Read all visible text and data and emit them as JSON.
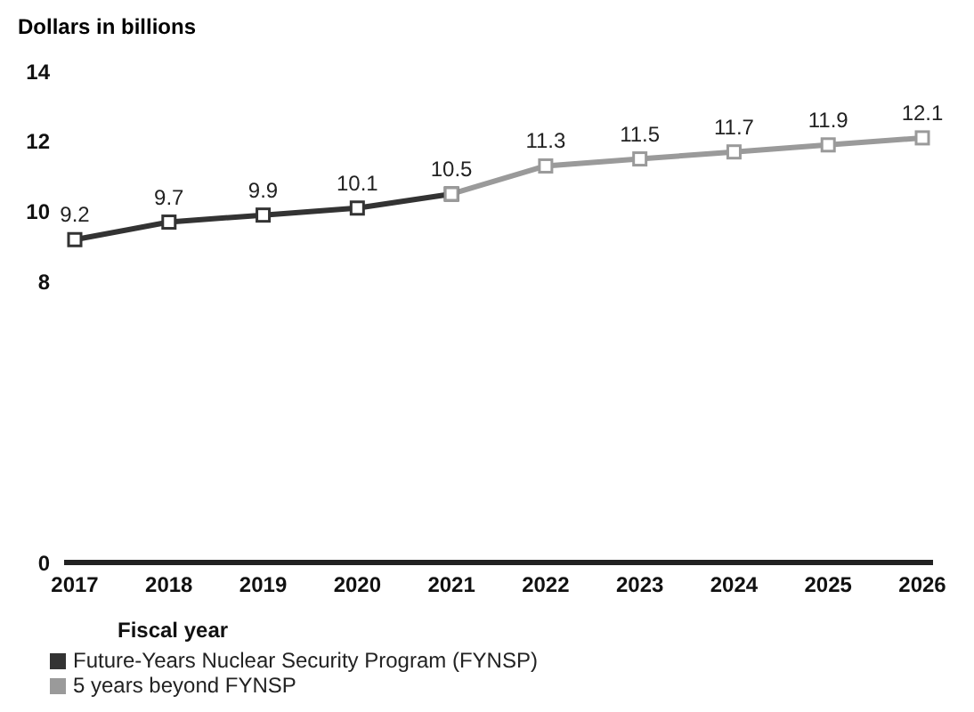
{
  "chart_data": {
    "type": "line",
    "ylabel": "Dollars in billions",
    "xlabel": "Fiscal year",
    "categories": [
      "2017",
      "2018",
      "2019",
      "2020",
      "2021",
      "2022",
      "2023",
      "2024",
      "2025",
      "2026"
    ],
    "series": [
      {
        "name": "Future-Years Nuclear Security Program (FYNSP)",
        "color": "#333333",
        "values": [
          9.2,
          9.7,
          9.9,
          10.1,
          10.5,
          null,
          null,
          null,
          null,
          null
        ],
        "value_labels": [
          "9.2",
          "9.7",
          "9.9",
          "10.1",
          "10.5",
          null,
          null,
          null,
          null,
          null
        ]
      },
      {
        "name": "5 years beyond FYNSP",
        "color": "#9a9a9a",
        "values": [
          null,
          null,
          null,
          null,
          10.5,
          11.3,
          11.5,
          11.7,
          11.9,
          12.1
        ],
        "value_labels": [
          null,
          null,
          null,
          null,
          null,
          "11.3",
          "11.5",
          "11.7",
          "11.9",
          "12.1"
        ]
      }
    ],
    "ylim": [
      0,
      14
    ],
    "yticks": [
      0,
      8,
      10,
      12,
      14
    ],
    "grid": false,
    "legend": "bottom",
    "marker": "square",
    "line_style": "solid"
  }
}
